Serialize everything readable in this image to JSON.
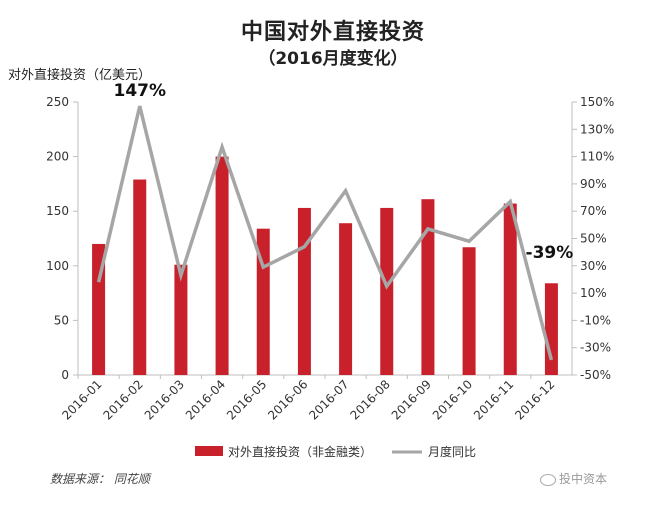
{
  "title": "中国对外直接投资",
  "subtitle": "（2016月度变化）",
  "source_text": "数据来源： 同花顺",
  "watermark_text": "投中资本",
  "chart_data": {
    "type": "bar",
    "categories": [
      "2016-01",
      "2016-02",
      "2016-03",
      "2016-04",
      "2016-05",
      "2016-06",
      "2016-07",
      "2016-08",
      "2016-09",
      "2016-10",
      "2016-11",
      "2016-12"
    ],
    "series": [
      {
        "name": "对外直接投资（非金融类）",
        "kind": "bar",
        "axis": "left",
        "color": "#c8212c",
        "values": [
          120,
          179,
          101,
          200,
          134,
          153,
          139,
          153,
          161,
          117,
          157,
          84
        ]
      },
      {
        "name": "月度同比",
        "kind": "line",
        "axis": "right",
        "color": "#a6a6a6",
        "values": [
          18,
          147,
          23,
          117,
          29,
          44,
          85,
          15,
          57,
          48,
          77,
          -39
        ]
      }
    ],
    "ylabel_left": "对外直接投资（亿美元）",
    "ylim_left": [
      0,
      250
    ],
    "yticks_left": [
      "0",
      "50",
      "100",
      "150",
      "200",
      "250"
    ],
    "ylim_right": [
      -50,
      150
    ],
    "yticks_right": [
      "-50%",
      "-30%",
      "-10%",
      "10%",
      "30%",
      "50%",
      "70%",
      "90%",
      "110%",
      "130%",
      "150%"
    ],
    "annotations": [
      {
        "text": "147%",
        "category": "2016-02"
      },
      {
        "text": "-39%",
        "category": "2016-12"
      }
    ],
    "legend_position": "bottom"
  }
}
